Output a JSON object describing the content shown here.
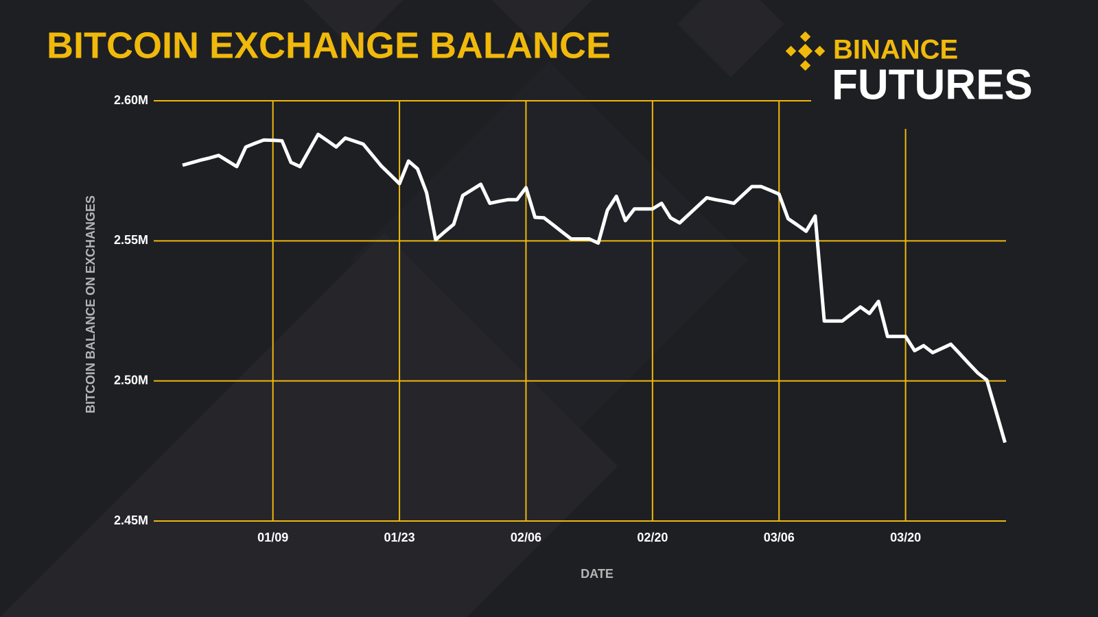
{
  "chart_data": {
    "type": "line",
    "title": "BITCOIN EXCHANGE BALANCE",
    "x_label": "DATE",
    "y_label": "BITCOIN BALANCE ON EXCHANGES",
    "categories": [
      null,
      null,
      null,
      null,
      null,
      null,
      null,
      null,
      null,
      null,
      "01/09",
      null,
      null,
      null,
      null,
      null,
      null,
      null,
      null,
      null,
      null,
      null,
      null,
      null,
      "01/23",
      null,
      null,
      null,
      null,
      null,
      null,
      null,
      null,
      null,
      null,
      null,
      null,
      null,
      "02/06",
      null,
      null,
      null,
      null,
      null,
      null,
      null,
      null,
      null,
      null,
      null,
      null,
      null,
      "02/20",
      null,
      null,
      null,
      null,
      null,
      null,
      null,
      null,
      null,
      null,
      null,
      null,
      null,
      "03/06",
      null,
      null,
      null,
      null,
      null,
      null,
      null,
      null,
      null,
      null,
      null,
      null,
      null,
      "03/20",
      null,
      null,
      null,
      null,
      null,
      null,
      null,
      null,
      null,
      null,
      null
    ],
    "series": [
      {
        "name": "Bitcoin balance",
        "color": "#ffffff",
        "values": [
          2577000,
          2577900,
          2578800,
          2579600,
          2580500,
          2578500,
          2576500,
          2583500,
          2584800,
          2586000,
          2585900,
          2585700,
          2578000,
          2576500,
          2582300,
          2588000,
          2585800,
          2583500,
          2586700,
          2585600,
          2584500,
          2580600,
          2576700,
          2573600,
          2570400,
          2578500,
          2575700,
          2567200,
          2550400,
          2553200,
          2555900,
          2566200,
          2568200,
          2570200,
          2563400,
          2564100,
          2564700,
          2564700,
          2569000,
          2558400,
          2558200,
          2555700,
          2553200,
          2550700,
          2550700,
          2550700,
          2549200,
          2560900,
          2565900,
          2557200,
          2561400,
          2561400,
          2561400,
          2563400,
          2558200,
          2556400,
          2559400,
          2562400,
          2565400,
          2564700,
          2564100,
          2563400,
          2566400,
          2569400,
          2569400,
          2568100,
          2566700,
          2557900,
          2555700,
          2553400,
          2558900,
          2521400,
          2521400,
          2521400,
          2523900,
          2526400,
          2524100,
          2528400,
          2515900,
          2515900,
          2515900,
          2510800,
          2512600,
          2510100,
          2511600,
          2513100,
          2509700,
          2506200,
          2502800,
          2500300,
          2489200,
          2478000
        ]
      }
    ],
    "ylim": [
      2450000,
      2600000
    ],
    "yticks": [
      {
        "value": 2450000,
        "label": "2.45M"
      },
      {
        "value": 2500000,
        "label": "2.50M"
      },
      {
        "value": 2550000,
        "label": "2.55M"
      },
      {
        "value": 2600000,
        "label": "2.60M"
      }
    ],
    "grid": true,
    "grid_color": "#f0b90b"
  },
  "logo": {
    "brand": "BINANCE",
    "product": "FUTURES"
  }
}
